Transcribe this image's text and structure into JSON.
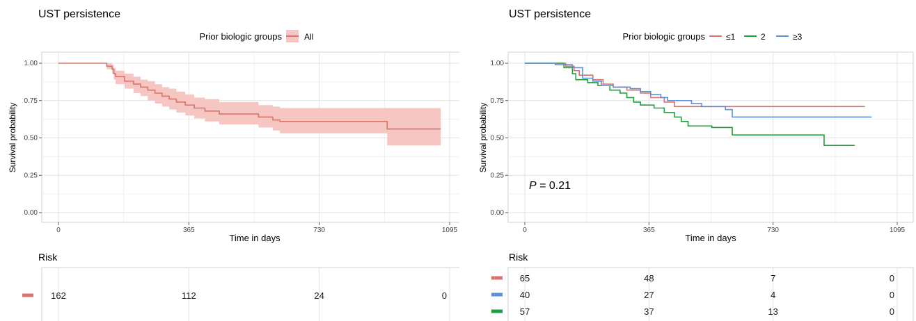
{
  "chart_data": [
    {
      "type": "line",
      "chart_kind": "kaplan-meier",
      "title": "UST persistence",
      "xlabel": "Time in days",
      "ylabel": "Survival probability",
      "xlim": [
        0,
        1095
      ],
      "ylim": [
        0,
        1
      ],
      "x_ticks": [
        0,
        365,
        730,
        1095
      ],
      "y_ticks": [
        0,
        0.25,
        0.5,
        0.75,
        1
      ],
      "x_tick_labels": [
        "0",
        "365",
        "730",
        "1095"
      ],
      "y_tick_labels": [
        "0.00",
        "0.25",
        "0.50",
        "0.75",
        "1.00"
      ],
      "grid": true,
      "legend": {
        "title": "Prior biologic groups",
        "position": "top",
        "entries": [
          "All"
        ]
      },
      "series": [
        {
          "name": "All",
          "color": "#d9736c",
          "band_color": "#f6c6c3",
          "steps": [
            [
              0,
              1.0
            ],
            [
              135,
              0.98
            ],
            [
              150,
              0.96
            ],
            [
              155,
              0.93
            ],
            [
              160,
              0.91
            ],
            [
              185,
              0.88
            ],
            [
              210,
              0.86
            ],
            [
              230,
              0.84
            ],
            [
              250,
              0.82
            ],
            [
              270,
              0.8
            ],
            [
              290,
              0.78
            ],
            [
              310,
              0.76
            ],
            [
              330,
              0.74
            ],
            [
              355,
              0.72
            ],
            [
              380,
              0.7
            ],
            [
              410,
              0.68
            ],
            [
              450,
              0.66
            ],
            [
              560,
              0.64
            ],
            [
              600,
              0.62
            ],
            [
              620,
              0.61
            ],
            [
              920,
              0.56
            ],
            [
              1070,
              0.56
            ]
          ],
          "lower": [
            [
              0,
              1.0
            ],
            [
              135,
              0.96
            ],
            [
              150,
              0.93
            ],
            [
              155,
              0.89
            ],
            [
              160,
              0.86
            ],
            [
              185,
              0.83
            ],
            [
              210,
              0.8
            ],
            [
              230,
              0.78
            ],
            [
              250,
              0.75
            ],
            [
              270,
              0.73
            ],
            [
              290,
              0.71
            ],
            [
              310,
              0.69
            ],
            [
              330,
              0.67
            ],
            [
              355,
              0.65
            ],
            [
              380,
              0.63
            ],
            [
              410,
              0.61
            ],
            [
              450,
              0.59
            ],
            [
              560,
              0.57
            ],
            [
              600,
              0.55
            ],
            [
              620,
              0.53
            ],
            [
              920,
              0.45
            ],
            [
              1070,
              0.45
            ]
          ],
          "upper": [
            [
              0,
              1.0
            ],
            [
              135,
              1.0
            ],
            [
              150,
              0.99
            ],
            [
              155,
              0.97
            ],
            [
              160,
              0.95
            ],
            [
              185,
              0.93
            ],
            [
              210,
              0.91
            ],
            [
              230,
              0.89
            ],
            [
              250,
              0.88
            ],
            [
              270,
              0.86
            ],
            [
              290,
              0.84
            ],
            [
              310,
              0.83
            ],
            [
              330,
              0.81
            ],
            [
              355,
              0.79
            ],
            [
              380,
              0.77
            ],
            [
              410,
              0.76
            ],
            [
              450,
              0.74
            ],
            [
              560,
              0.72
            ],
            [
              600,
              0.71
            ],
            [
              620,
              0.7
            ],
            [
              920,
              0.7
            ],
            [
              1070,
              0.7
            ]
          ]
        }
      ],
      "risk_table": {
        "title": "Risk",
        "times": [
          0,
          365,
          730,
          1095
        ],
        "rows": [
          {
            "color": "#d9736c",
            "values": [
              "162",
              "112",
              "24",
              "0"
            ]
          }
        ]
      }
    },
    {
      "type": "line",
      "chart_kind": "kaplan-meier",
      "title": "UST persistence",
      "xlabel": "Time in days",
      "ylabel": "Survival probability",
      "xlim": [
        0,
        1095
      ],
      "ylim": [
        0,
        1
      ],
      "x_ticks": [
        0,
        365,
        730,
        1095
      ],
      "y_ticks": [
        0,
        0.25,
        0.5,
        0.75,
        1
      ],
      "x_tick_labels": [
        "0",
        "365",
        "730",
        "1095"
      ],
      "y_tick_labels": [
        "0.00",
        "0.25",
        "0.50",
        "0.75",
        "1.00"
      ],
      "grid": true,
      "annotation": {
        "italic": "P",
        "rest": " = 0.21"
      },
      "legend": {
        "title": "Prior biologic groups",
        "position": "top",
        "entries": [
          "≤1",
          "2",
          "≥3"
        ]
      },
      "series": [
        {
          "name": "≤1",
          "color": "#d9736c",
          "steps": [
            [
              0,
              1.0
            ],
            [
              120,
              0.98
            ],
            [
              145,
              0.95
            ],
            [
              160,
              0.92
            ],
            [
              200,
              0.89
            ],
            [
              230,
              0.86
            ],
            [
              260,
              0.84
            ],
            [
              300,
              0.82
            ],
            [
              340,
              0.8
            ],
            [
              370,
              0.77
            ],
            [
              410,
              0.74
            ],
            [
              440,
              0.71
            ],
            [
              1000,
              0.71
            ]
          ]
        },
        {
          "name": "2",
          "color": "#1e9e3c",
          "steps": [
            [
              0,
              1.0
            ],
            [
              115,
              0.97
            ],
            [
              140,
              0.93
            ],
            [
              150,
              0.89
            ],
            [
              185,
              0.87
            ],
            [
              215,
              0.85
            ],
            [
              250,
              0.82
            ],
            [
              280,
              0.8
            ],
            [
              300,
              0.77
            ],
            [
              320,
              0.74
            ],
            [
              340,
              0.72
            ],
            [
              380,
              0.7
            ],
            [
              410,
              0.67
            ],
            [
              440,
              0.64
            ],
            [
              460,
              0.61
            ],
            [
              480,
              0.58
            ],
            [
              550,
              0.57
            ],
            [
              610,
              0.52
            ],
            [
              880,
              0.45
            ],
            [
              970,
              0.45
            ]
          ]
        },
        {
          "name": "≥3",
          "color": "#5b8fd6",
          "steps": [
            [
              0,
              1.0
            ],
            [
              90,
              0.99
            ],
            [
              140,
              0.97
            ],
            [
              170,
              0.9
            ],
            [
              200,
              0.88
            ],
            [
              225,
              0.85
            ],
            [
              260,
              0.84
            ],
            [
              310,
              0.83
            ],
            [
              340,
              0.81
            ],
            [
              370,
              0.79
            ],
            [
              400,
              0.77
            ],
            [
              420,
              0.75
            ],
            [
              490,
              0.73
            ],
            [
              520,
              0.71
            ],
            [
              590,
              0.69
            ],
            [
              610,
              0.64
            ],
            [
              1020,
              0.64
            ]
          ]
        }
      ],
      "risk_table": {
        "title": "Risk",
        "times": [
          0,
          365,
          730,
          1095
        ],
        "rows": [
          {
            "color": "#d9736c",
            "values": [
              "65",
              "48",
              "7",
              "0"
            ]
          },
          {
            "color": "#5b8fd6",
            "values": [
              "40",
              "27",
              "4",
              "0"
            ]
          },
          {
            "color": "#1e9e3c",
            "values": [
              "57",
              "37",
              "13",
              "0"
            ]
          }
        ]
      }
    }
  ]
}
